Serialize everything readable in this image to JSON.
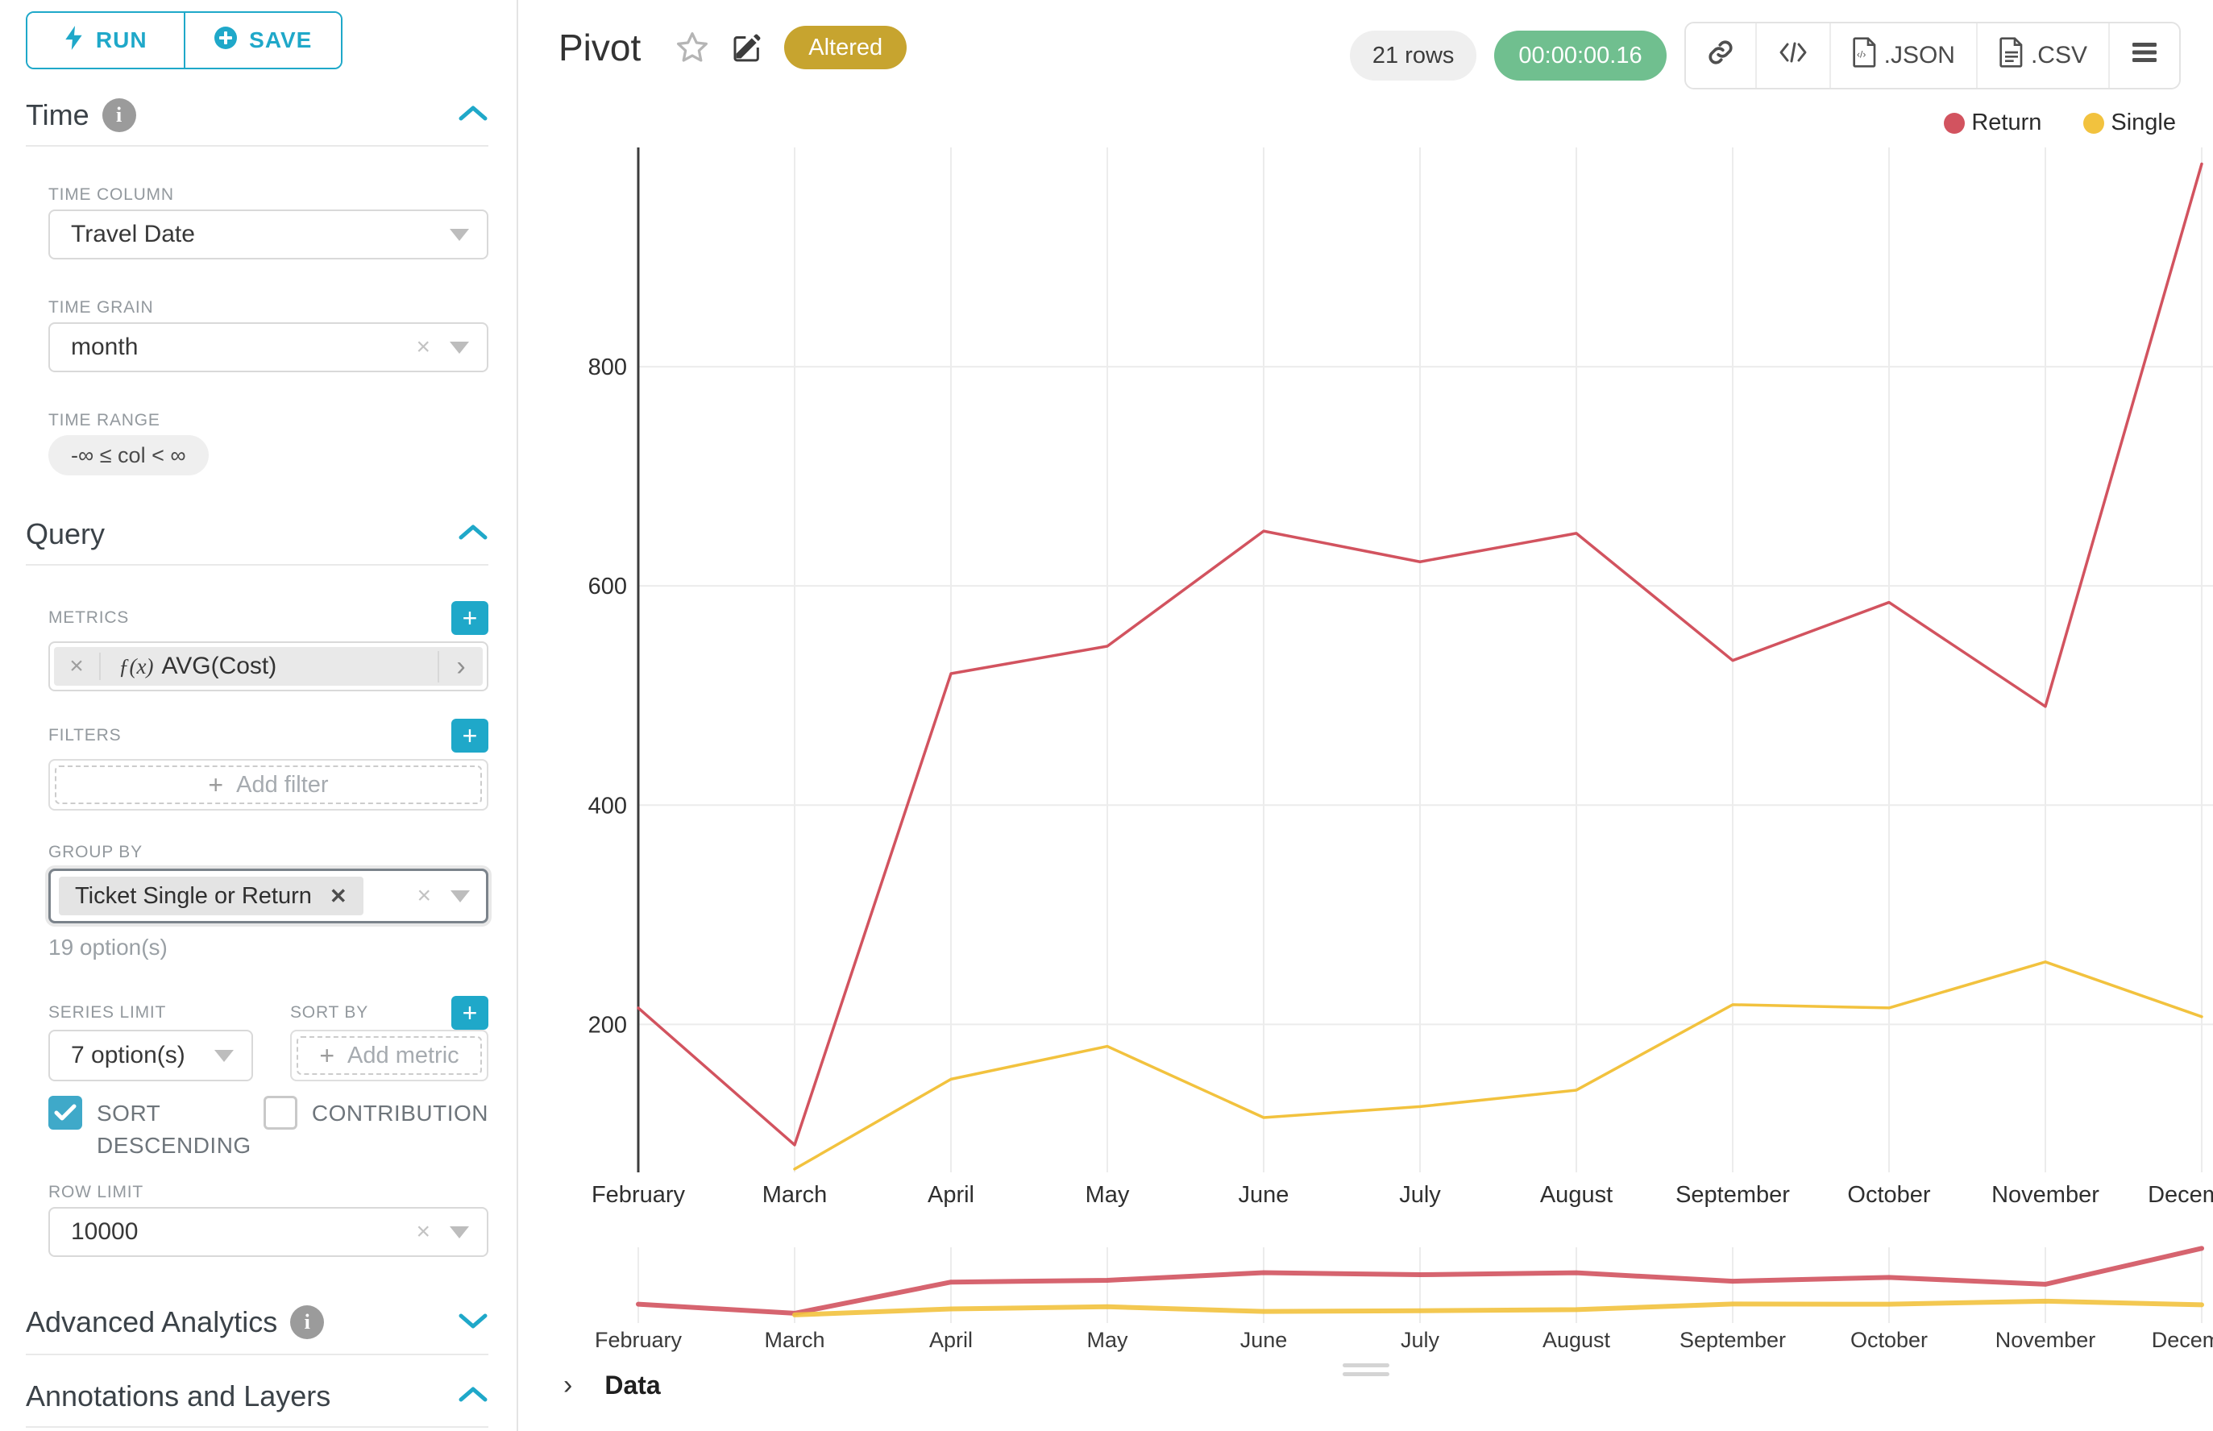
{
  "sidebar": {
    "run_label": "RUN",
    "save_label": "SAVE",
    "time": {
      "title": "Time",
      "column_label": "TIME COLUMN",
      "column_value": "Travel Date",
      "grain_label": "TIME GRAIN",
      "grain_value": "month",
      "range_label": "TIME RANGE",
      "range_value": "-∞ ≤ col < ∞"
    },
    "query": {
      "title": "Query",
      "metrics_label": "METRICS",
      "metric_fx": "ƒ(x)",
      "metric_value": "AVG(Cost)",
      "filters_label": "FILTERS",
      "add_filter_placeholder": "Add filter",
      "group_by_label": "GROUP BY",
      "group_by_value": "Ticket Single or Return",
      "group_by_options_hint": "19 option(s)",
      "series_limit_label": "SERIES LIMIT",
      "series_limit_value": "7 option(s)",
      "sort_by_label": "SORT BY",
      "add_metric_placeholder": "Add metric",
      "sort_descending_label": "SORT DESCENDING",
      "contribution_label": "CONTRIBUTION",
      "row_limit_label": "ROW LIMIT",
      "row_limit_value": "10000"
    },
    "advanced_analytics_title": "Advanced Analytics",
    "annotations_title": "Annotations and Layers"
  },
  "header": {
    "title": "Pivot",
    "altered_badge": "Altered",
    "rows_badge": "21 rows",
    "timer_badge": "00:00:00.16",
    "json_label": ".JSON",
    "csv_label": ".CSV"
  },
  "data_panel": {
    "title": "Data"
  },
  "chart_data": {
    "type": "line",
    "title": "Pivot",
    "xlabel": "",
    "ylabel": "",
    "categories": [
      "February",
      "March",
      "April",
      "May",
      "June",
      "July",
      "August",
      "September",
      "October",
      "November",
      "December"
    ],
    "series": [
      {
        "name": "Return",
        "color": "#d2535f",
        "values": [
          215,
          90,
          520,
          545,
          650,
          622,
          648,
          532,
          585,
          490,
          985
        ]
      },
      {
        "name": "Single",
        "color": "#f2c23e",
        "values": [
          null,
          68,
          150,
          180,
          115,
          125,
          140,
          218,
          215,
          257,
          207
        ]
      }
    ],
    "y_ticks": [
      200,
      400,
      600,
      800
    ],
    "ylim": [
      65,
      1000
    ],
    "grid": true,
    "legend_position": "top-right",
    "has_range_selector": true
  }
}
